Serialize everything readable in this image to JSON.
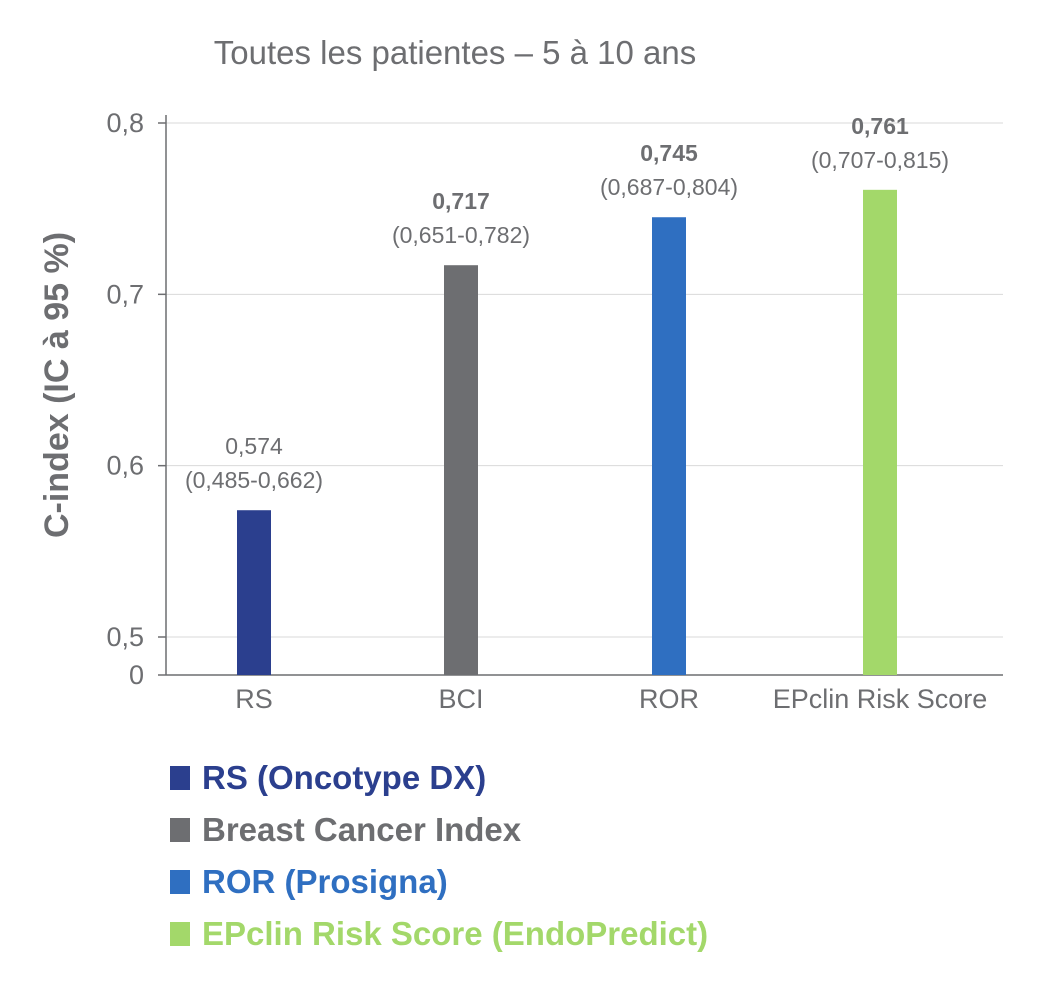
{
  "chart_data": {
    "type": "bar",
    "title": "Toutes les patientes – 5 à 10 ans",
    "xlabel": "",
    "ylabel": "C-index (IC à 95 %)",
    "categories": [
      "RS",
      "BCI",
      "ROR",
      "EPclin Risk Score"
    ],
    "values": [
      0.574,
      0.717,
      0.745,
      0.761
    ],
    "value_labels": [
      "0,574",
      "0,717",
      "0,745",
      "0,761"
    ],
    "value_bold": [
      false,
      true,
      true,
      true
    ],
    "ci_labels": [
      "(0,485-0,662)",
      "(0,651-0,782)",
      "(0,687-0,804)",
      "(0,707-0,815)"
    ],
    "colors": [
      "#2b3f8e",
      "#6d6e71",
      "#2f6fc1",
      "#a3d86a"
    ],
    "y_ticks": [
      {
        "value": 0,
        "label": "0"
      },
      {
        "value": 0.5,
        "label": "0,5"
      },
      {
        "value": 0.6,
        "label": "0,6"
      },
      {
        "value": 0.7,
        "label": "0,7"
      },
      {
        "value": 0.8,
        "label": "0,8"
      }
    ],
    "axis_break": true,
    "ylim": [
      0.5,
      0.8
    ],
    "grid": true,
    "legend_position": "bottom",
    "legend": [
      {
        "label": "RS (Oncotype DX)",
        "color": "#2b3f8e"
      },
      {
        "label": "Breast Cancer Index",
        "color": "#6d6e71"
      },
      {
        "label": "ROR (Prosigna)",
        "color": "#2f6fc1"
      },
      {
        "label": "EPclin Risk Score (EndoPredict)",
        "color": "#a3d86a"
      }
    ]
  }
}
